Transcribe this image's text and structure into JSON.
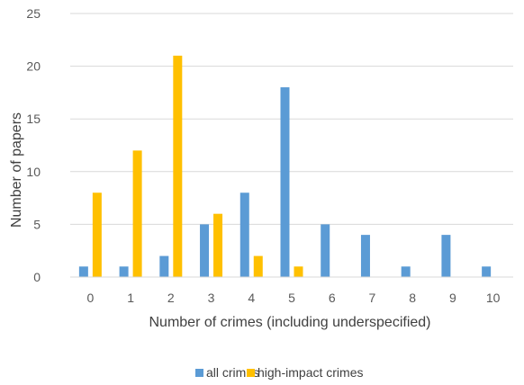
{
  "chart_data": {
    "type": "bar",
    "title": "",
    "xlabel": "Number of crimes (including underspecified)",
    "ylabel": "Number of papers",
    "categories": [
      "0",
      "1",
      "2",
      "3",
      "4",
      "5",
      "6",
      "7",
      "8",
      "9",
      "10"
    ],
    "ylim": [
      0,
      25
    ],
    "yticks": [
      0,
      5,
      10,
      15,
      20,
      25
    ],
    "grid": true,
    "legend_position": "bottom",
    "series": [
      {
        "name": "all crimes",
        "color": "#5B9BD5",
        "values": [
          1,
          1,
          2,
          5,
          8,
          18,
          5,
          4,
          1,
          4,
          1
        ]
      },
      {
        "name": "high-impact crimes",
        "color": "#FFC000",
        "values": [
          8,
          12,
          21,
          6,
          2,
          1,
          0,
          0,
          0,
          0,
          0
        ]
      }
    ]
  }
}
